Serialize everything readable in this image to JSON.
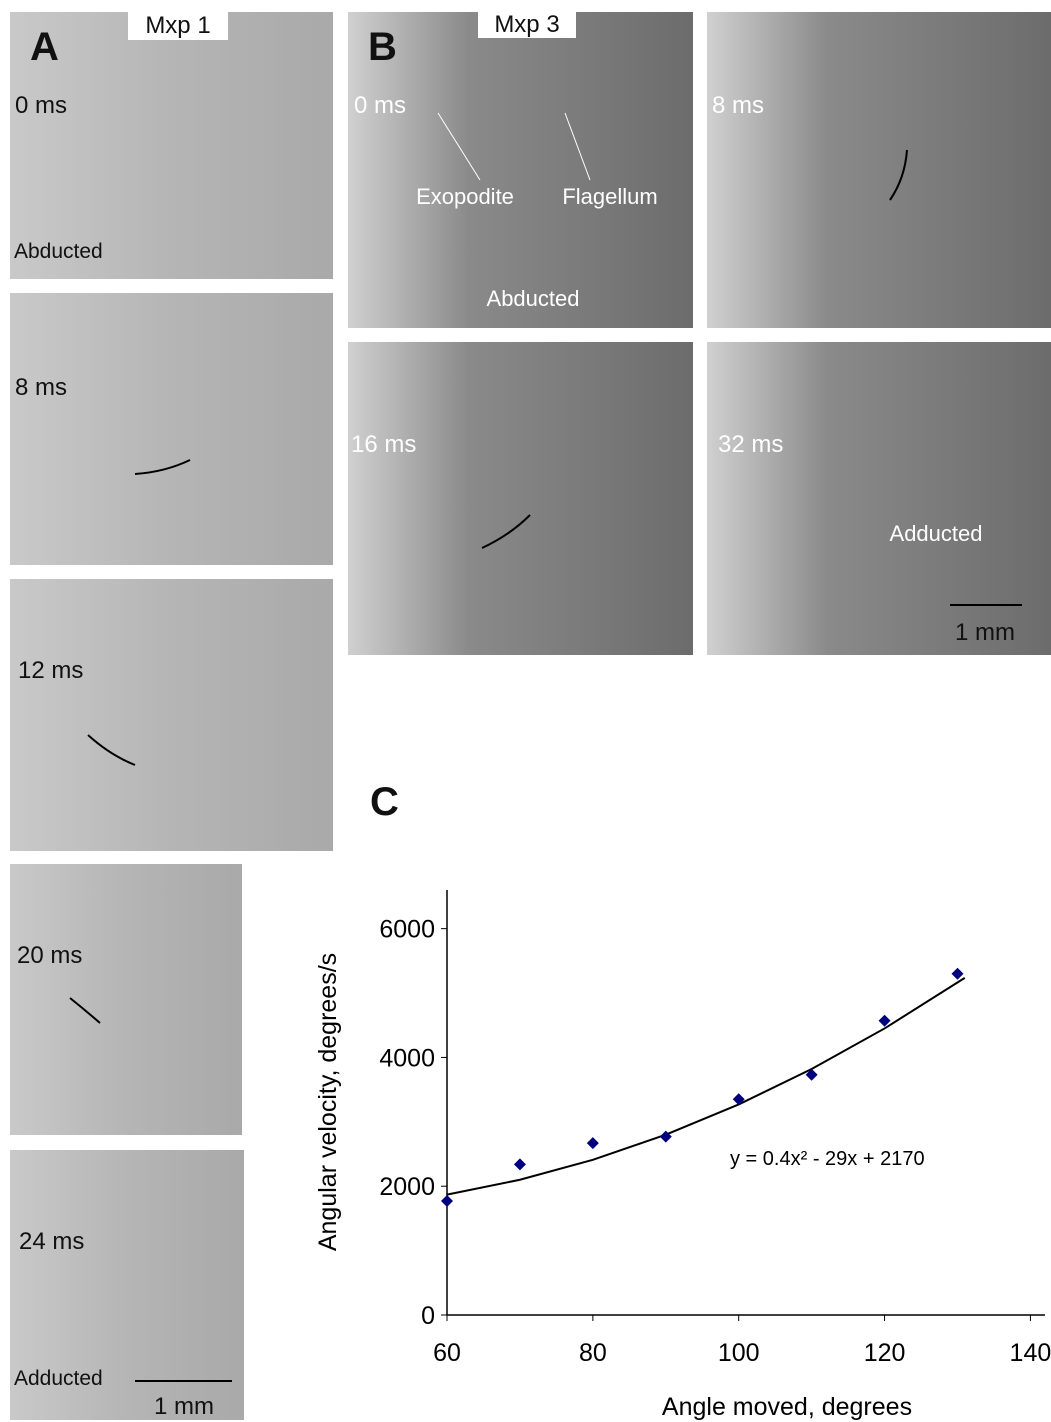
{
  "figure": {
    "panel_a": {
      "letter": "A",
      "title": "Mxp 1",
      "frames": [
        "0 ms",
        "8 ms",
        "12 ms",
        "20 ms",
        "24 ms"
      ],
      "abducted": "Abducted",
      "adducted": "Adducted",
      "scale": "1 mm"
    },
    "panel_b": {
      "letter": "B",
      "title": "Mxp 3",
      "frames": [
        "0 ms",
        "8 ms",
        "16 ms",
        "32 ms"
      ],
      "exopodite": "Exopodite",
      "flagellum": "Flagellum",
      "abducted": "Abducted",
      "adducted": "Adducted",
      "scale": "1 mm"
    },
    "panel_c": {
      "letter": "C"
    }
  },
  "chart_data": {
    "type": "scatter",
    "x_label": "Angle moved, degrees",
    "y_label": "Angular velocity, degrees/s",
    "annotation": "y = 0.4x² - 29x + 2170",
    "series": [
      {
        "color": "#00007f",
        "x": [
          60,
          70,
          80,
          90,
          100,
          110,
          120,
          130
        ],
        "values": [
          1770,
          2340,
          2670,
          2770,
          3350,
          3730,
          4570,
          5300
        ]
      }
    ],
    "trendline": {
      "color": "#000000",
      "x": [
        60,
        70,
        80,
        90,
        100,
        110,
        120,
        131
      ],
      "values": [
        1870,
        2100,
        2410,
        2800,
        3270,
        3820,
        4450,
        5235.4
      ]
    },
    "xlim": [
      60,
      142
    ],
    "ylim": [
      0,
      6600
    ],
    "xticks": [
      60,
      80,
      100,
      120,
      140
    ],
    "yticks": [
      0,
      2000,
      4000,
      6000
    ]
  }
}
